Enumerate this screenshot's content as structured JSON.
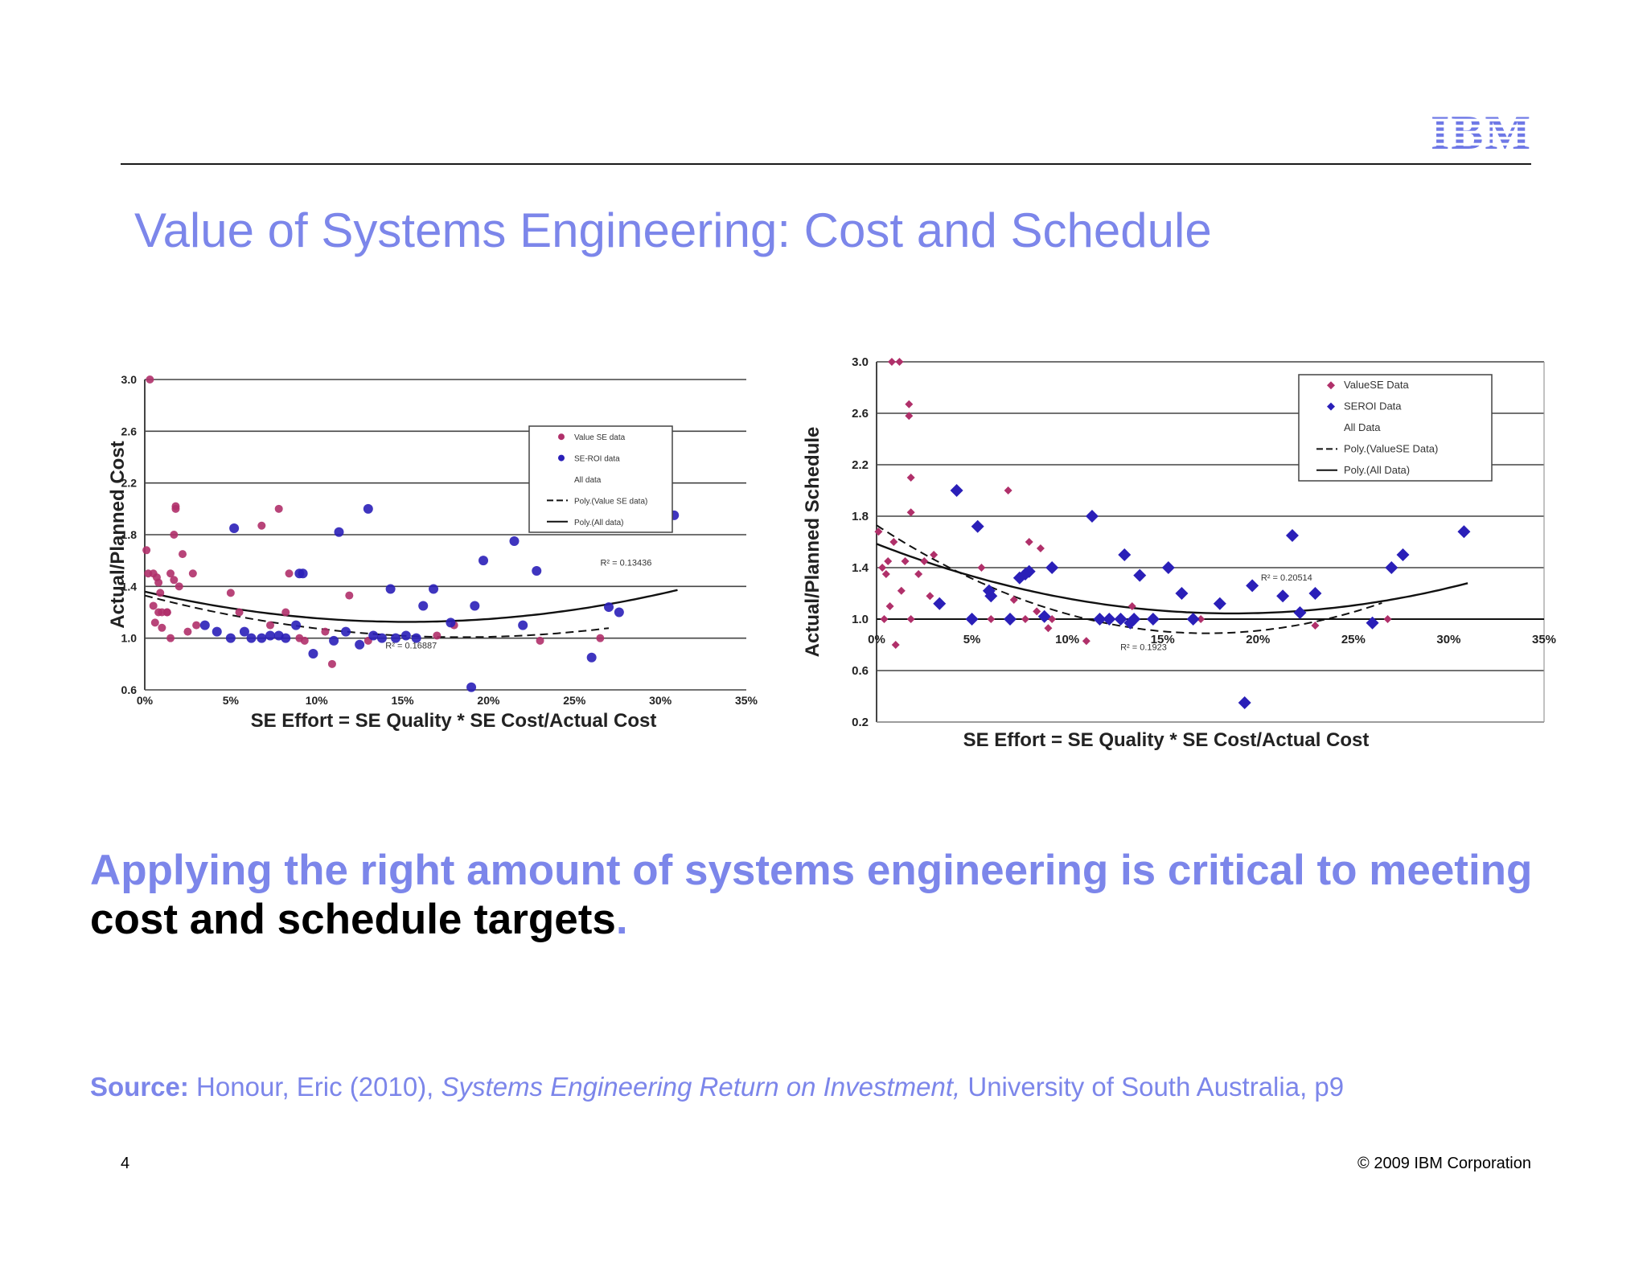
{
  "header": {
    "logo_text": "IBM",
    "title": "Value of Systems Engineering: Cost and Schedule"
  },
  "colors": {
    "accent": "#7c86ea",
    "value_se": "#b0306a",
    "seroi": "#2a1fb8",
    "grid": "#444444"
  },
  "headline": {
    "part1": "Applying the right amount of systems engineering is critical to meeting",
    "part2": "cost and schedule targets",
    "part3": "."
  },
  "source": {
    "label": "Source:",
    "author": "Honour, Eric (2010),",
    "work": "Systems Engineering Return on Investment,",
    "publisher": "University of South Australia, p9"
  },
  "footer": {
    "page_number": "4",
    "copyright": "© 2009 IBM Corporation"
  },
  "chart_data": [
    {
      "id": "cost",
      "type": "scatter",
      "xlabel": "SE Effort = SE Quality * SE Cost/Actual Cost",
      "ylabel": "Actual/Planned Cost",
      "xlim": [
        0,
        35
      ],
      "ylim": [
        0.6,
        3.0
      ],
      "x_ticks": [
        0,
        5,
        10,
        15,
        20,
        25,
        30,
        35
      ],
      "x_tick_labels": [
        "0%",
        "5%",
        "10%",
        "15%",
        "20%",
        "25%",
        "30%",
        "35%"
      ],
      "y_ticks": [
        0.6,
        1.0,
        1.4,
        1.8,
        2.2,
        2.6,
        3.0
      ],
      "y_tick_labels": [
        "0.6",
        "1.0",
        "1.4",
        "1.8",
        "2.2",
        "2.6",
        "3.0"
      ],
      "grid": true,
      "legend_position": "top-right",
      "legend": [
        "Value SE data",
        "SE-ROI data",
        "All data",
        "Poly.(Value SE data)",
        "Poly.(All data)"
      ],
      "annotations": [
        {
          "text": "R² = 0.13436",
          "x": 28,
          "y": 1.56
        },
        {
          "text": "R² = 0.16887",
          "x": 15.5,
          "y": 0.92
        }
      ],
      "series": [
        {
          "name": "Value SE data",
          "marker": "circle",
          "points": [
            [
              0.3,
              3.0
            ],
            [
              0.1,
              1.68
            ],
            [
              0.2,
              1.5
            ],
            [
              0.5,
              1.5
            ],
            [
              0.7,
              1.47
            ],
            [
              0.8,
              1.43
            ],
            [
              0.5,
              1.25
            ],
            [
              0.8,
              1.2
            ],
            [
              1.0,
              1.2
            ],
            [
              1.3,
              1.2
            ],
            [
              0.6,
              1.12
            ],
            [
              1.0,
              1.08
            ],
            [
              0.9,
              1.35
            ],
            [
              1.3,
              1.2
            ],
            [
              1.5,
              1.5
            ],
            [
              1.7,
              1.45
            ],
            [
              1.8,
              2.02
            ],
            [
              1.8,
              2.0
            ],
            [
              1.7,
              1.8
            ],
            [
              2.2,
              1.65
            ],
            [
              2.0,
              1.4
            ],
            [
              1.5,
              1.0
            ],
            [
              2.8,
              1.5
            ],
            [
              3.0,
              1.1
            ],
            [
              2.5,
              1.05
            ],
            [
              5.0,
              1.35
            ],
            [
              5.5,
              1.2
            ],
            [
              6.8,
              1.87
            ],
            [
              7.8,
              2.0
            ],
            [
              8.4,
              1.5
            ],
            [
              8.2,
              1.2
            ],
            [
              7.3,
              1.1
            ],
            [
              9.0,
              1.0
            ],
            [
              9.3,
              0.98
            ],
            [
              10.5,
              1.05
            ],
            [
              10.9,
              0.8
            ],
            [
              11.9,
              1.33
            ],
            [
              13.0,
              0.98
            ],
            [
              17.0,
              1.02
            ],
            [
              18.0,
              1.1
            ],
            [
              23.0,
              0.98
            ],
            [
              26.5,
              1.0
            ]
          ]
        },
        {
          "name": "SE-ROI data",
          "marker": "circle",
          "points": [
            [
              3.5,
              1.1
            ],
            [
              4.2,
              1.05
            ],
            [
              5.0,
              1.0
            ],
            [
              5.2,
              1.85
            ],
            [
              5.8,
              1.05
            ],
            [
              6.2,
              1.0
            ],
            [
              6.8,
              1.0
            ],
            [
              7.3,
              1.02
            ],
            [
              7.8,
              1.02
            ],
            [
              8.2,
              1.0
            ],
            [
              8.8,
              1.1
            ],
            [
              9.0,
              1.5
            ],
            [
              9.2,
              1.5
            ],
            [
              9.8,
              0.88
            ],
            [
              11.0,
              0.98
            ],
            [
              11.3,
              1.82
            ],
            [
              11.7,
              1.05
            ],
            [
              12.5,
              0.95
            ],
            [
              13.0,
              2.0
            ],
            [
              13.3,
              1.02
            ],
            [
              13.8,
              1.0
            ],
            [
              14.3,
              1.38
            ],
            [
              14.6,
              1.0
            ],
            [
              15.2,
              1.02
            ],
            [
              15.8,
              1.0
            ],
            [
              16.2,
              1.25
            ],
            [
              16.8,
              1.38
            ],
            [
              17.8,
              1.12
            ],
            [
              19.0,
              0.62
            ],
            [
              19.2,
              1.25
            ],
            [
              19.7,
              1.6
            ],
            [
              21.5,
              1.75
            ],
            [
              22.0,
              1.1
            ],
            [
              22.8,
              1.52
            ],
            [
              26.0,
              0.85
            ],
            [
              27.0,
              1.24
            ],
            [
              27.6,
              1.2
            ],
            [
              30.8,
              1.95
            ]
          ]
        }
      ],
      "trendlines": [
        {
          "name": "Poly.(All data)",
          "style": "solid",
          "coef": [
            0.001,
            -0.0306,
            1.36
          ],
          "range": [
            0,
            31
          ]
        },
        {
          "name": "Poly.(Value SE data)",
          "style": "dashed",
          "coef": [
            0.00095,
            -0.035,
            1.33
          ],
          "range": [
            0,
            27
          ]
        }
      ]
    },
    {
      "id": "schedule",
      "type": "scatter",
      "xlabel": "SE Effort = SE Quality * SE Cost/Actual Cost",
      "ylabel": "Actual/Planned Schedule",
      "xlim": [
        0,
        35
      ],
      "ylim": [
        0.2,
        3.0
      ],
      "x_ticks": [
        0,
        5,
        10,
        15,
        20,
        25,
        30,
        35
      ],
      "x_tick_labels": [
        "0%",
        "5%",
        "10%",
        "15%",
        "20%",
        "25%",
        "30%",
        "35%"
      ],
      "y_ticks": [
        0.2,
        0.6,
        1.0,
        1.4,
        1.8,
        2.2,
        2.6,
        3.0
      ],
      "y_tick_labels": [
        "0.2",
        "0.6",
        "1.0",
        "1.4",
        "1.8",
        "2.2",
        "2.6",
        "3.0"
      ],
      "grid": true,
      "legend_position": "top-right",
      "legend": [
        "ValueSE Data",
        "SEROI Data",
        "All Data",
        "Poly.(ValueSE Data)",
        "Poly.(All Data)"
      ],
      "annotations": [
        {
          "text": "R² = 0.20514",
          "x": 21.5,
          "y": 1.3
        },
        {
          "text": "R² = 0.1923",
          "x": 14,
          "y": 0.76
        }
      ],
      "series": [
        {
          "name": "ValueSE Data",
          "marker": "diamond",
          "points": [
            [
              0.1,
              1.68
            ],
            [
              0.3,
              1.4
            ],
            [
              0.6,
              1.45
            ],
            [
              0.5,
              1.35
            ],
            [
              0.4,
              1.0
            ],
            [
              0.7,
              1.1
            ],
            [
              0.8,
              3.0
            ],
            [
              1.2,
              3.0
            ],
            [
              0.9,
              1.6
            ],
            [
              1.0,
              0.8
            ],
            [
              1.3,
              1.22
            ],
            [
              1.5,
              1.45
            ],
            [
              1.7,
              2.67
            ],
            [
              1.7,
              2.58
            ],
            [
              1.8,
              2.1
            ],
            [
              1.8,
              1.83
            ],
            [
              2.2,
              1.35
            ],
            [
              2.5,
              1.45
            ],
            [
              3.0,
              1.5
            ],
            [
              2.8,
              1.18
            ],
            [
              1.8,
              1.0
            ],
            [
              5.5,
              1.4
            ],
            [
              6.0,
              1.0
            ],
            [
              6.9,
              2.0
            ],
            [
              7.2,
              1.15
            ],
            [
              8.0,
              1.6
            ],
            [
              7.8,
              1.0
            ],
            [
              8.6,
              1.55
            ],
            [
              8.4,
              1.06
            ],
            [
              9.0,
              0.93
            ],
            [
              9.2,
              1.0
            ],
            [
              11.0,
              0.83
            ],
            [
              12.3,
              1.0
            ],
            [
              13.4,
              1.1
            ],
            [
              17.0,
              1.0
            ],
            [
              23.0,
              0.95
            ],
            [
              26.8,
              1.0
            ]
          ]
        },
        {
          "name": "SEROI Data",
          "marker": "diamond",
          "points": [
            [
              3.3,
              1.12
            ],
            [
              4.2,
              2.0
            ],
            [
              5.0,
              1.0
            ],
            [
              5.3,
              1.72
            ],
            [
              5.9,
              1.22
            ],
            [
              6.0,
              1.18
            ],
            [
              7.0,
              1.0
            ],
            [
              7.5,
              1.32
            ],
            [
              7.8,
              1.35
            ],
            [
              8.0,
              1.37
            ],
            [
              8.8,
              1.02
            ],
            [
              9.2,
              1.4
            ],
            [
              11.3,
              1.8
            ],
            [
              11.7,
              1.0
            ],
            [
              12.2,
              1.0
            ],
            [
              12.8,
              1.0
            ],
            [
              13.0,
              1.5
            ],
            [
              13.3,
              0.97
            ],
            [
              13.5,
              1.0
            ],
            [
              13.8,
              1.34
            ],
            [
              14.5,
              1.0
            ],
            [
              15.3,
              1.4
            ],
            [
              16.0,
              1.2
            ],
            [
              16.6,
              1.0
            ],
            [
              18.0,
              1.12
            ],
            [
              19.3,
              0.35
            ],
            [
              19.7,
              1.26
            ],
            [
              21.3,
              1.18
            ],
            [
              21.8,
              1.65
            ],
            [
              22.2,
              1.05
            ],
            [
              23.0,
              1.2
            ],
            [
              26.0,
              0.97
            ],
            [
              27.0,
              1.4
            ],
            [
              27.6,
              1.5
            ],
            [
              30.8,
              1.68
            ]
          ]
        }
      ],
      "trendlines": [
        {
          "name": "Poly.(All Data)",
          "style": "solid",
          "coef": [
            0.00155,
            -0.0579,
            1.585
          ],
          "range": [
            0,
            31
          ]
        },
        {
          "name": "Poly.(ValueSE Data)",
          "style": "dashed",
          "coef": [
            0.0028,
            -0.097,
            1.73
          ],
          "range": [
            0,
            26.5
          ]
        }
      ]
    }
  ]
}
